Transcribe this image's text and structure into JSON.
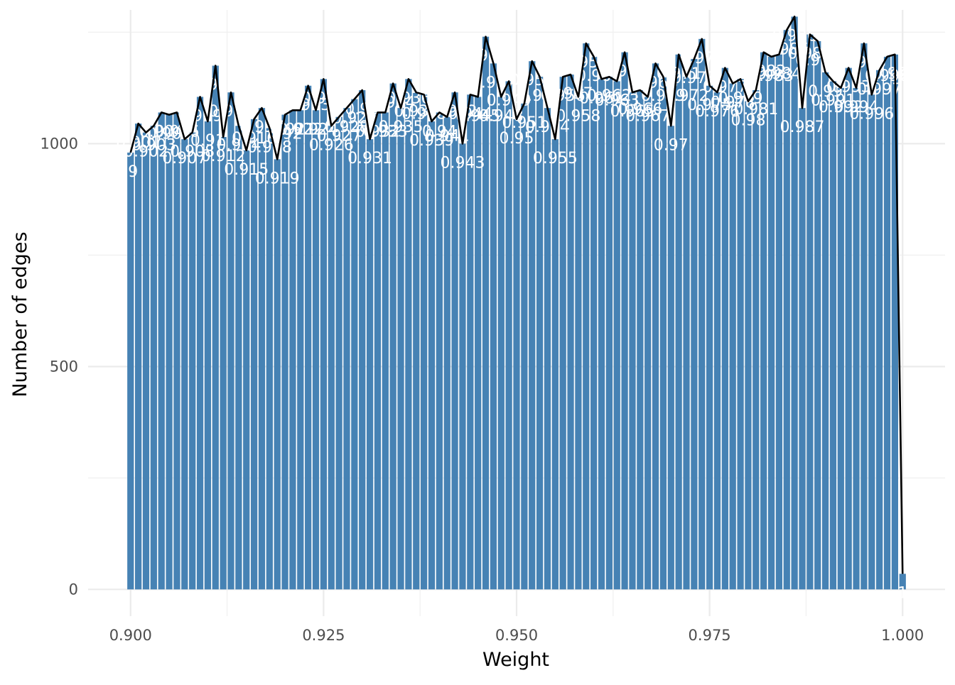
{
  "chart_data": {
    "type": "bar",
    "title": "",
    "xlabel": "Weight",
    "ylabel": "Number of edges",
    "xlim": [
      0.8945,
      1.0055
    ],
    "ylim": [
      -60,
      1300
    ],
    "x_ticks": [
      0.9,
      0.925,
      0.95,
      0.975,
      1.0
    ],
    "x_tick_labels": [
      "0.900",
      "0.925",
      "0.950",
      "0.975",
      "1.000"
    ],
    "y_ticks": [
      0,
      500,
      1000
    ],
    "y_tick_labels": [
      "0",
      "500",
      "1000"
    ],
    "grid": true,
    "legend": "none",
    "bar_color": "#4682B4",
    "line_color": "#000000",
    "label_color": "#ffffff",
    "bar_width": 0.00085,
    "x": [
      0.9,
      0.901,
      0.902,
      0.903,
      0.904,
      0.905,
      0.906,
      0.907,
      0.908,
      0.909,
      0.91,
      0.911,
      0.912,
      0.913,
      0.914,
      0.915,
      0.916,
      0.917,
      0.918,
      0.919,
      0.92,
      0.921,
      0.922,
      0.923,
      0.924,
      0.925,
      0.926,
      0.927,
      0.928,
      0.929,
      0.93,
      0.931,
      0.932,
      0.933,
      0.934,
      0.935,
      0.936,
      0.937,
      0.938,
      0.939,
      0.94,
      0.941,
      0.942,
      0.943,
      0.944,
      0.945,
      0.946,
      0.947,
      0.948,
      0.949,
      0.95,
      0.951,
      0.952,
      0.953,
      0.954,
      0.955,
      0.956,
      0.957,
      0.958,
      0.959,
      0.96,
      0.961,
      0.962,
      0.963,
      0.964,
      0.965,
      0.966,
      0.967,
      0.968,
      0.969,
      0.97,
      0.971,
      0.972,
      0.973,
      0.974,
      0.975,
      0.976,
      0.977,
      0.978,
      0.979,
      0.98,
      0.981,
      0.982,
      0.983,
      0.984,
      0.985,
      0.986,
      0.987,
      0.988,
      0.989,
      0.99,
      0.991,
      0.992,
      0.993,
      0.994,
      0.995,
      0.996,
      0.997,
      0.998,
      0.999,
      1.0
    ],
    "values": [
      980,
      1045,
      1025,
      1040,
      1070,
      1065,
      1070,
      1010,
      1025,
      1105,
      1050,
      1175,
      1015,
      1115,
      1040,
      985,
      1055,
      1080,
      1035,
      965,
      1065,
      1075,
      1075,
      1130,
      1075,
      1145,
      1040,
      1060,
      1080,
      1100,
      1120,
      1010,
      1070,
      1070,
      1135,
      1080,
      1145,
      1115,
      1110,
      1050,
      1070,
      1060,
      1115,
      1000,
      1110,
      1105,
      1240,
      1180,
      1105,
      1140,
      1055,
      1090,
      1185,
      1150,
      1080,
      1010,
      1150,
      1155,
      1105,
      1225,
      1195,
      1145,
      1150,
      1140,
      1205,
      1115,
      1120,
      1105,
      1180,
      1150,
      1040,
      1200,
      1150,
      1190,
      1235,
      1130,
      1115,
      1170,
      1135,
      1145,
      1095,
      1120,
      1205,
      1195,
      1200,
      1255,
      1285,
      1080,
      1245,
      1230,
      1160,
      1140,
      1125,
      1170,
      1125,
      1225,
      1110,
      1165,
      1195,
      1200,
      35
    ],
    "labels": [
      ".9",
      "0.901",
      "0.902",
      "0.903",
      "0.904",
      "0.905",
      "0.906",
      "0.907",
      "0.908",
      "0.909",
      "0.91",
      "0.911",
      "0.912",
      "0.913",
      "0.914",
      "0.915",
      "0.916",
      "0.917",
      "0.918",
      "0.919",
      "0.92",
      "0.921",
      "0.922",
      "0.923",
      "0.924",
      "0.925",
      "0.926",
      "0.927",
      "0.928",
      "0.929",
      "0.93",
      "0.931",
      "0.932",
      "0.933",
      "0.934",
      "0.935",
      "0.936",
      "0.937",
      "0.938",
      "0.939",
      "0.94",
      "0.941",
      "0.942",
      "0.943",
      "0.944",
      "0.945",
      "0.946",
      "0.947",
      "0.948",
      "0.949",
      "0.95",
      "0.951",
      "0.952",
      "0.953",
      "0.954",
      "0.955",
      "0.956",
      "0.957",
      "0.958",
      "0.959",
      "0.96",
      "0.961",
      "0.962",
      "0.963",
      "0.964",
      "0.965",
      "0.966",
      "0.967",
      "0.968",
      "0.969",
      "0.97",
      "0.971",
      "0.972",
      "0.973",
      "0.974",
      "0.975",
      "0.976",
      "0.977",
      "0.978",
      "0.979",
      "0.98",
      "0.981",
      "0.982",
      "0.983",
      "0.984",
      "0.985",
      "0.986",
      "0.987",
      "0.988",
      "0.989",
      "0.99",
      "0.991",
      "0.992",
      "0.993",
      "0.994",
      "0.995",
      "0.996",
      "0.997",
      "0.998",
      "0.999",
      "1"
    ]
  }
}
